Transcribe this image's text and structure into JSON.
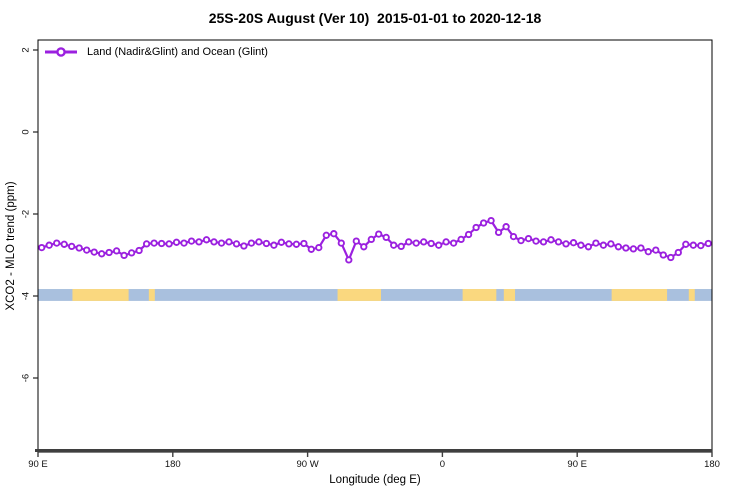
{
  "title": "25S-20S August (Ver 10)  2015-01-01 to 2020-12-18",
  "legend": {
    "label": "Land (Nadir&Glint) and Ocean (Glint)"
  },
  "x_axis": {
    "label": "Longitude (deg E)",
    "range_deg": [
      90,
      540
    ],
    "ticks": [
      {
        "value": 90,
        "label": "90 E"
      },
      {
        "value": 180,
        "label": "180"
      },
      {
        "value": 270,
        "label": "90 W"
      },
      {
        "value": 360,
        "label": "0"
      },
      {
        "value": 450,
        "label": "90 E"
      },
      {
        "value": 540,
        "label": "180"
      }
    ]
  },
  "y_axis": {
    "label": "XCO2 - MLO trend (ppm)",
    "range_ppm": [
      -7.8,
      2.2
    ],
    "ticks": [
      {
        "value": 2,
        "label": "2"
      },
      {
        "value": 0,
        "label": "0"
      },
      {
        "value": -2,
        "label": "-2"
      },
      {
        "value": -4,
        "label": "-4"
      },
      {
        "value": -6,
        "label": "-6"
      }
    ]
  },
  "colors": {
    "series": "#9B20DF",
    "ocean": "#A9C0DE",
    "land": "#FAD87F",
    "axis_line": "#3F3F3F",
    "frame": "#000000",
    "text": "#000000"
  },
  "chart_data": {
    "type": "line",
    "title": "25S-20S August (Ver 10)  2015-01-01 to 2020-12-18",
    "xlabel": "Longitude (deg E)",
    "ylabel": "XCO2 - MLO trend (ppm)",
    "x_axis_wrapped_deg_range": [
      90,
      540
    ],
    "grid": false,
    "legend_position": "top-left",
    "series": [
      {
        "name": "Land (Nadir&Glint) and Ocean (Glint)",
        "marker": "open-circle",
        "x_start_deg": 92.5,
        "x_step_deg": 5,
        "values": [
          -2.82,
          -2.76,
          -2.71,
          -2.74,
          -2.79,
          -2.83,
          -2.88,
          -2.93,
          -2.97,
          -2.94,
          -2.9,
          -3.01,
          -2.95,
          -2.89,
          -2.73,
          -2.71,
          -2.72,
          -2.73,
          -2.69,
          -2.71,
          -2.66,
          -2.68,
          -2.63,
          -2.68,
          -2.71,
          -2.68,
          -2.73,
          -2.78,
          -2.71,
          -2.68,
          -2.72,
          -2.76,
          -2.69,
          -2.73,
          -2.74,
          -2.72,
          -2.86,
          -2.82,
          -2.52,
          -2.48,
          -2.71,
          -3.12,
          -2.66,
          -2.8,
          -2.62,
          -2.49,
          -2.57,
          -2.76,
          -2.79,
          -2.68,
          -2.71,
          -2.68,
          -2.72,
          -2.76,
          -2.68,
          -2.71,
          -2.62,
          -2.5,
          -2.33,
          -2.22,
          -2.16,
          -2.45,
          -2.31,
          -2.55,
          -2.65,
          -2.6,
          -2.66,
          -2.68,
          -2.63,
          -2.68,
          -2.73,
          -2.7,
          -2.76,
          -2.8,
          -2.71,
          -2.76,
          -2.73,
          -2.8,
          -2.83,
          -2.85,
          -2.83,
          -2.92,
          -2.88,
          -3.0,
          -3.06,
          -2.94,
          -2.74,
          -2.76,
          -2.77,
          -2.72
        ]
      }
    ],
    "map_band": {
      "description": "latitude strip map 25S-20S drawn across plot",
      "y_top_ppm": -3.83,
      "y_bottom_ppm": -4.12,
      "land_segments_deg": [
        [
          113,
          150.5
        ],
        [
          164,
          168
        ],
        [
          290,
          319
        ],
        [
          373.5,
          396
        ],
        [
          401,
          408.5
        ],
        [
          473,
          510
        ],
        [
          524.5,
          528.5
        ]
      ]
    }
  }
}
